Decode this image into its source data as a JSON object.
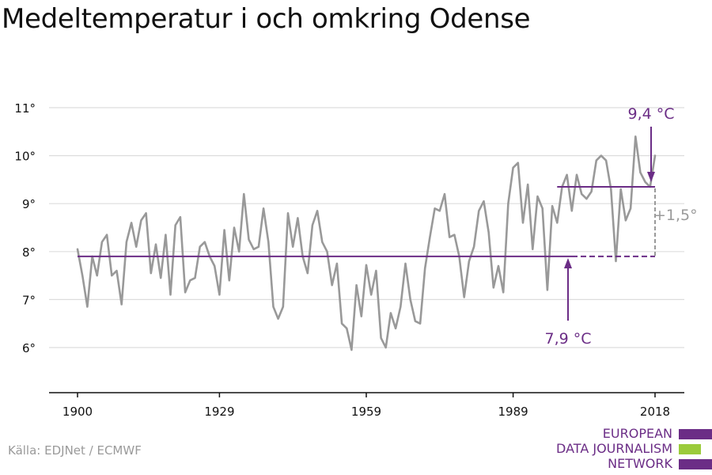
{
  "title": "Medeltemperatur i och omkring Odense",
  "source": "Källa: EDJNet / ECMWF",
  "logo": {
    "lines": [
      "EUROPEAN",
      "DATA JOURNALISM",
      "NETWORK"
    ],
    "colors": {
      "purple": "#6b2d86",
      "green": "#9bcb3b"
    }
  },
  "colors": {
    "series": "#999999",
    "accent": "#6b2d86",
    "grid": "#dddddd",
    "axis": "#111111",
    "diff": "#9a9a9a"
  },
  "chart_data": {
    "type": "line",
    "title": "Medeltemperatur i och omkring Odense",
    "xlabel": "",
    "ylabel": "",
    "xlim": [
      1900,
      2018
    ],
    "ylim": [
      5,
      11.5
    ],
    "grid": "horizontal",
    "x_ticks": [
      1900,
      1929,
      1959,
      1989,
      2018
    ],
    "x_tick_labels": [
      "1900",
      "1929",
      "1959",
      "1989",
      "2018"
    ],
    "y_ticks": [
      6,
      7,
      8,
      9,
      10,
      11
    ],
    "y_tick_labels": [
      "6°",
      "7°",
      "8°",
      "9°",
      "10°",
      "11°"
    ],
    "series": [
      {
        "x_start": 1900,
        "values": [
          8.05,
          7.5,
          6.85,
          7.9,
          7.5,
          8.2,
          8.35,
          7.5,
          7.6,
          6.9,
          8.2,
          8.6,
          8.1,
          8.65,
          8.8,
          7.55,
          8.15,
          7.45,
          8.35,
          7.1,
          8.55,
          8.72,
          7.15,
          7.4,
          7.45,
          8.1,
          8.2,
          7.9,
          7.7,
          7.1,
          8.45,
          7.4,
          8.5,
          8.0,
          9.2,
          8.25,
          8.05,
          8.1,
          8.9,
          8.2,
          6.85,
          6.6,
          6.85,
          8.8,
          8.1,
          8.7,
          7.9,
          7.55,
          8.55,
          8.85,
          8.2,
          8.0,
          7.3,
          7.75,
          6.5,
          6.4,
          5.95,
          7.3,
          6.65,
          7.72,
          7.1,
          7.6,
          6.2,
          6.0,
          6.72,
          6.4,
          6.85,
          7.75,
          7.0,
          6.55,
          6.5,
          7.65,
          8.3,
          8.9,
          8.85,
          9.2,
          8.3,
          8.35,
          7.9,
          7.05,
          7.8,
          8.1,
          8.85,
          9.05,
          8.4,
          7.25,
          7.7,
          7.15,
          9.0,
          9.75,
          9.85,
          8.6,
          9.4,
          8.05,
          9.15,
          8.9,
          7.2,
          8.95,
          8.6,
          9.35,
          9.6,
          8.85,
          9.6,
          9.2,
          9.1,
          9.25,
          9.9,
          10.0,
          9.9,
          9.3,
          7.8,
          9.3,
          8.65,
          8.9,
          10.4,
          9.65,
          9.45,
          9.35,
          10.0
        ]
      }
    ],
    "reference_lines": [
      {
        "label": "7,9 °C",
        "value": 7.9,
        "x_from": 1900,
        "x_to": 2018
      },
      {
        "label": "9,4 °C",
        "value": 9.35,
        "x_from": 1998,
        "x_to": 2018
      }
    ],
    "difference_label": "+1,5°",
    "annotations": [
      "7,9 °C",
      "9,4 °C",
      "+1,5°"
    ]
  }
}
